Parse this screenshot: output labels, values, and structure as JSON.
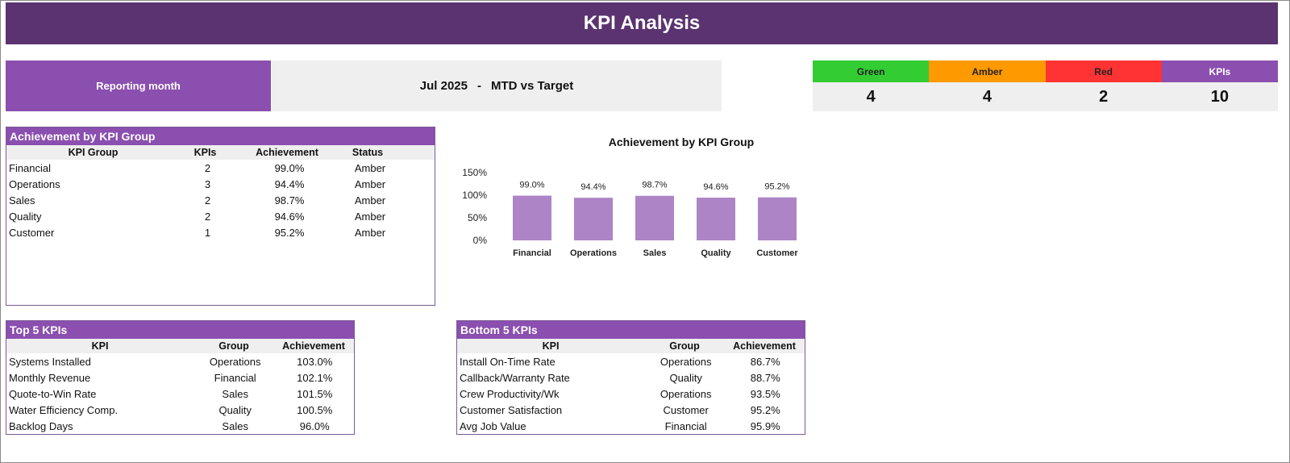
{
  "title": "KPI Analysis",
  "reporting": {
    "label": "Reporting month",
    "month": "Jul 2025",
    "separator": "-",
    "mode": "MTD vs Target"
  },
  "status_summary": {
    "headers": [
      "Green",
      "Amber",
      "Red",
      "KPIs"
    ],
    "values": [
      "4",
      "4",
      "2",
      "10"
    ],
    "colors": [
      "#33cc33",
      "#ff9900",
      "#ff3333",
      "#8a4faf"
    ]
  },
  "group_table": {
    "title": "Achievement by KPI Group",
    "columns": [
      "KPI Group",
      "KPIs",
      "Achievement",
      "Status"
    ],
    "rows": [
      [
        "Financial",
        "2",
        "99.0%",
        "Amber"
      ],
      [
        "Operations",
        "3",
        "94.4%",
        "Amber"
      ],
      [
        "Sales",
        "2",
        "98.7%",
        "Amber"
      ],
      [
        "Quality",
        "2",
        "94.6%",
        "Amber"
      ],
      [
        "Customer",
        "1",
        "95.2%",
        "Amber"
      ]
    ]
  },
  "top5": {
    "title": "Top 5 KPIs",
    "columns": [
      "KPI",
      "Group",
      "Achievement"
    ],
    "rows": [
      [
        "Systems Installed",
        "Operations",
        "103.0%"
      ],
      [
        "Monthly Revenue",
        "Financial",
        "102.1%"
      ],
      [
        "Quote-to-Win Rate",
        "Sales",
        "101.5%"
      ],
      [
        "Water Efficiency Comp.",
        "Quality",
        "100.5%"
      ],
      [
        "Backlog Days",
        "Sales",
        "96.0%"
      ]
    ]
  },
  "bottom5": {
    "title": "Bottom 5 KPIs",
    "columns": [
      "KPI",
      "Group",
      "Achievement"
    ],
    "rows": [
      [
        "Install On-Time Rate",
        "Operations",
        "86.7%"
      ],
      [
        "Callback/Warranty Rate",
        "Quality",
        "88.7%"
      ],
      [
        "Crew Productivity/Wk",
        "Operations",
        "93.5%"
      ],
      [
        "Customer Satisfaction",
        "Customer",
        "95.2%"
      ],
      [
        "Avg Job Value",
        "Financial",
        "95.9%"
      ]
    ]
  },
  "chart_data": {
    "type": "bar",
    "title": "Achievement by KPI Group",
    "categories": [
      "Financial",
      "Operations",
      "Sales",
      "Quality",
      "Customer"
    ],
    "values": [
      99.0,
      94.4,
      98.7,
      94.6,
      95.2
    ],
    "value_labels": [
      "99.0%",
      "94.4%",
      "98.7%",
      "94.6%",
      "95.2%"
    ],
    "ylim": [
      0,
      150
    ],
    "yticks": [
      0,
      50,
      100,
      150
    ],
    "ytick_labels": [
      "0%",
      "50%",
      "100%",
      "150%"
    ],
    "bar_color": "#ad85c6",
    "grid": false,
    "legend": "none"
  }
}
